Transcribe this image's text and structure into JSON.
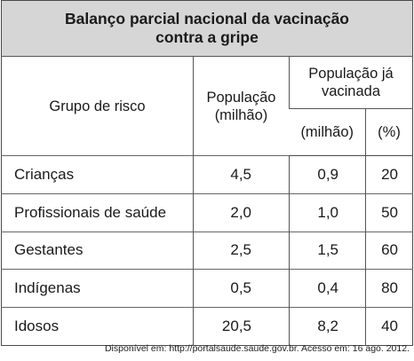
{
  "title_line1": "Balanço parcial nacional da vacinação",
  "title_line2": "contra a gripe",
  "headers": {
    "group": "Grupo de risco",
    "population_line1": "População",
    "population_line2": "(milhão)",
    "vaccinated_line1": "População já",
    "vaccinated_line2": "vacinada",
    "vaccinated_million": "(milhão)",
    "vaccinated_percent": "(%)"
  },
  "rows": [
    {
      "group": "Crianças",
      "population": "4,5",
      "vaccinated": "0,9",
      "percent": "20"
    },
    {
      "group": "Profissionais de saúde",
      "population": "2,0",
      "vaccinated": "1,0",
      "percent": "50"
    },
    {
      "group": "Gestantes",
      "population": "2,5",
      "vaccinated": "1,5",
      "percent": "60"
    },
    {
      "group": "Indígenas",
      "population": "0,5",
      "vaccinated": "0,4",
      "percent": "80"
    },
    {
      "group": "Idosos",
      "population": "20,5",
      "vaccinated": "8,2",
      "percent": "40"
    }
  ],
  "source": "Disponível em: http://portalsaude.saude.gov.br. Acesso em: 16 ago. 2012."
}
